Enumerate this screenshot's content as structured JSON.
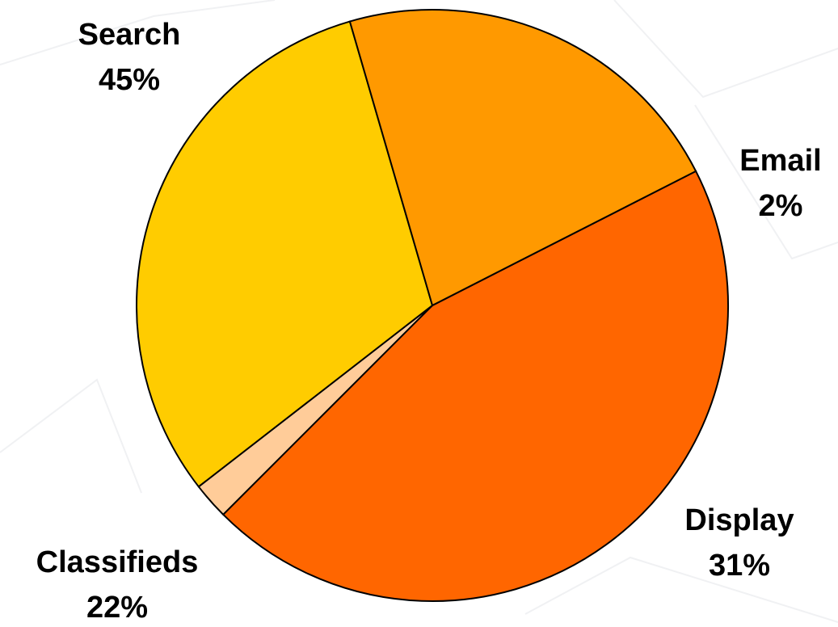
{
  "chart_data": {
    "type": "pie",
    "title": "",
    "categories": [
      "Search",
      "Email",
      "Display",
      "Classifieds"
    ],
    "values": [
      45,
      2,
      31,
      22
    ],
    "value_labels": [
      "45%",
      "2%",
      "31%",
      "22%"
    ],
    "colors": [
      "#ff6600",
      "#ffcc99",
      "#ffcc00",
      "#ff9900"
    ],
    "start_angle_deg": 63,
    "direction": "clockwise",
    "legend": "none"
  }
}
